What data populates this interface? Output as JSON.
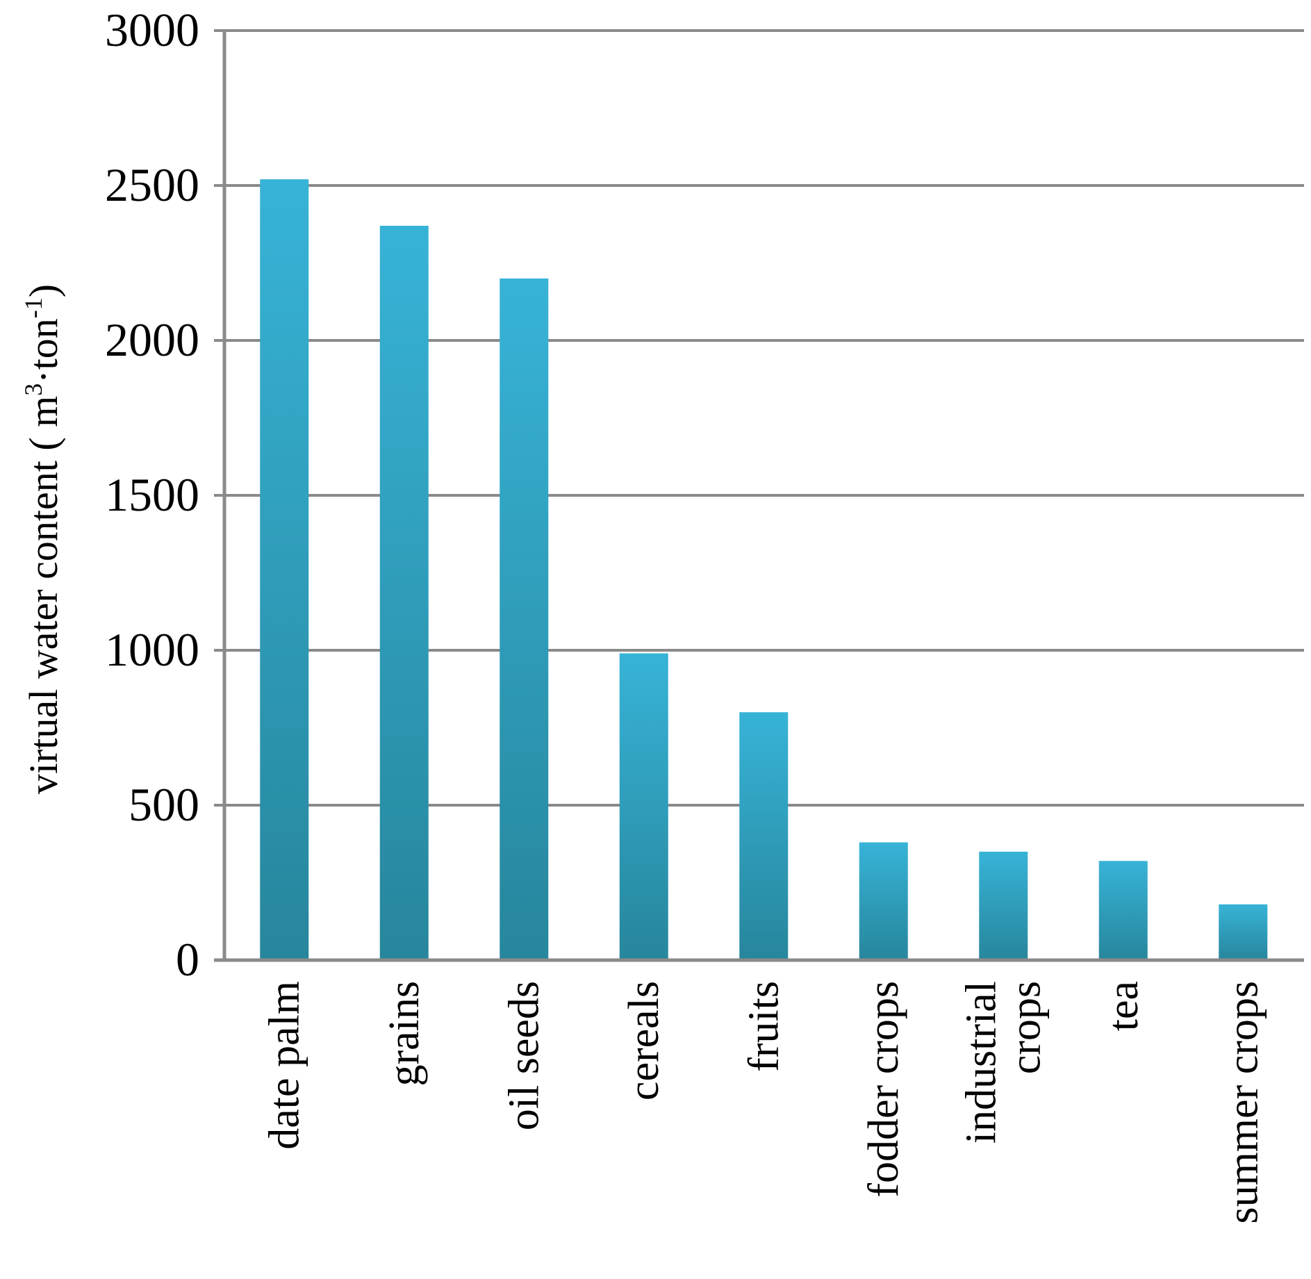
{
  "chart_data": {
    "type": "bar",
    "title": "",
    "xlabel": "",
    "ylabel": {
      "main": "virtual water content ( m",
      "sup1": "3",
      "mid": "·ton",
      "sup2": "-1",
      "end": ")"
    },
    "categories": [
      [
        "date palm"
      ],
      [
        "grains"
      ],
      [
        "oil seeds"
      ],
      [
        "cereals"
      ],
      [
        "fruits"
      ],
      [
        "fodder crops"
      ],
      [
        "industrial",
        "crops"
      ],
      [
        "tea"
      ],
      [
        "summer crops"
      ]
    ],
    "values": [
      2520,
      2370,
      2200,
      990,
      800,
      380,
      350,
      320,
      180
    ],
    "ylim": [
      0,
      3000
    ],
    "yticks": [
      "0",
      "500",
      "1000",
      "1500",
      "2000",
      "2500",
      "3000"
    ],
    "grid": true,
    "legend": "none",
    "colors": {
      "bar_top": "#37b3d7",
      "bar_bottom": "#27869c",
      "grid": "#8a8a8a"
    }
  }
}
